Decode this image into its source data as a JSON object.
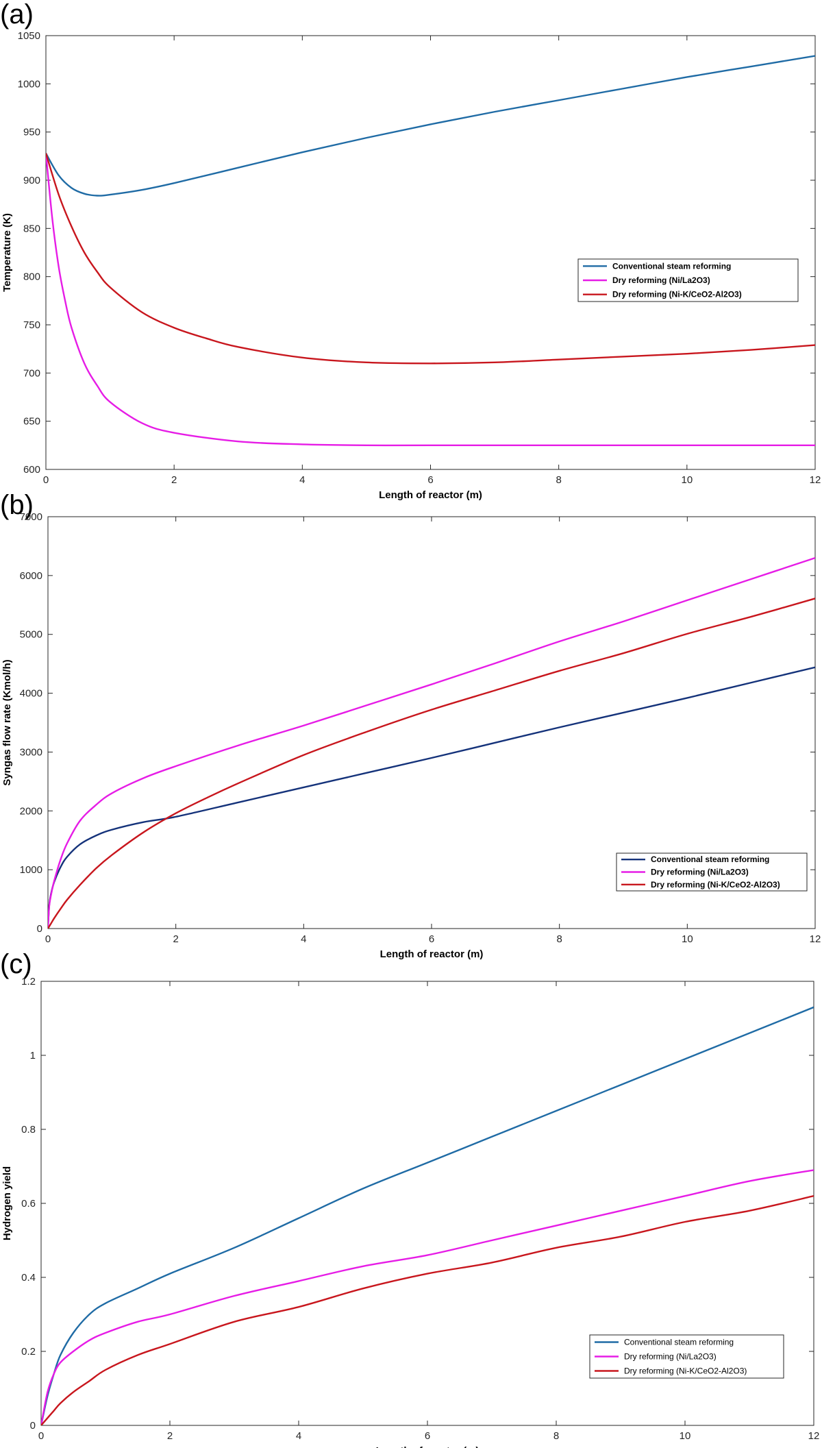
{
  "chart_data": [
    {
      "type": "line",
      "panel_label": "(a)",
      "xlabel": "Length of reactor (m)",
      "ylabel": "Temperature (K)",
      "xlim": [
        0,
        12
      ],
      "ylim": [
        600,
        1050
      ],
      "xticks": [
        0,
        2,
        4,
        6,
        8,
        10,
        12
      ],
      "yticks": [
        600,
        650,
        700,
        750,
        800,
        850,
        900,
        950,
        1000,
        1050
      ],
      "legend_position": "right",
      "grid": false,
      "series": [
        {
          "name": "Conventional steam reforming",
          "color": "#1f6ba5",
          "x": [
            0,
            0.2,
            0.4,
            0.6,
            0.8,
            1.0,
            1.5,
            2,
            3,
            4,
            5,
            6,
            7,
            8,
            9,
            10,
            11,
            12
          ],
          "y": [
            928,
            905,
            892,
            886,
            884,
            885,
            890,
            897,
            913,
            929,
            944,
            958,
            971,
            983,
            995,
            1007,
            1018,
            1029
          ]
        },
        {
          "name": "Dry reforming (Ni/La2O3)",
          "color": "#e61ce6",
          "x": [
            0,
            0.1,
            0.2,
            0.3,
            0.4,
            0.6,
            0.8,
            1.0,
            1.5,
            2,
            3,
            4,
            5,
            6,
            8,
            10,
            12
          ],
          "y": [
            928,
            860,
            810,
            775,
            747,
            710,
            687,
            670,
            648,
            638,
            629,
            626,
            625,
            625,
            625,
            625,
            625
          ]
        },
        {
          "name": "Dry reforming (Ni-K/CeO2-Al2O3)",
          "color": "#c8161d",
          "x": [
            0,
            0.2,
            0.4,
            0.6,
            0.8,
            1.0,
            1.5,
            2,
            2.5,
            3,
            4,
            5,
            6,
            7,
            8,
            9,
            10,
            11,
            12
          ],
          "y": [
            928,
            885,
            852,
            825,
            805,
            789,
            763,
            747,
            736,
            727,
            716,
            711,
            710,
            711,
            714,
            717,
            720,
            724,
            729
          ]
        }
      ]
    },
    {
      "type": "line",
      "panel_label": "(b)",
      "xlabel": "Length of reactor (m)",
      "ylabel": "Syngas flow rate (Kmol/h)",
      "xlim": [
        0,
        12
      ],
      "ylim": [
        0,
        7000
      ],
      "xticks": [
        0,
        2,
        4,
        6,
        8,
        10,
        12
      ],
      "yticks": [
        0,
        1000,
        2000,
        3000,
        4000,
        5000,
        6000,
        7000
      ],
      "legend_position": "bottom-right",
      "grid": false,
      "series": [
        {
          "name": "Conventional steam reforming",
          "color": "#14327a",
          "x": [
            0,
            0.02,
            0.05,
            0.1,
            0.2,
            0.3,
            0.5,
            0.75,
            1.0,
            1.5,
            2,
            3,
            4,
            5,
            6,
            7,
            8,
            9,
            10,
            11,
            12
          ],
          "y": [
            0,
            400,
            600,
            800,
            1050,
            1220,
            1430,
            1580,
            1680,
            1810,
            1900,
            2150,
            2400,
            2650,
            2900,
            3160,
            3420,
            3670,
            3920,
            4180,
            4440
          ]
        },
        {
          "name": "Dry reforming (Ni/La2O3)",
          "color": "#e61ce6",
          "x": [
            0,
            0.02,
            0.05,
            0.1,
            0.2,
            0.3,
            0.5,
            0.75,
            1.0,
            1.5,
            2,
            3,
            4,
            5,
            6,
            7,
            8,
            9,
            10,
            11,
            12
          ],
          "y": [
            0,
            380,
            580,
            820,
            1180,
            1450,
            1830,
            2100,
            2300,
            2560,
            2760,
            3120,
            3450,
            3800,
            4150,
            4510,
            4880,
            5220,
            5580,
            5940,
            6300
          ]
        },
        {
          "name": "Dry reforming (Ni-K/CeO2-Al2O3)",
          "color": "#c8161d",
          "x": [
            0,
            0.05,
            0.1,
            0.2,
            0.3,
            0.5,
            0.75,
            1.0,
            1.5,
            2,
            2.5,
            3,
            4,
            5,
            6,
            7,
            8,
            9,
            10,
            11,
            12
          ],
          "y": [
            0,
            90,
            180,
            340,
            490,
            740,
            1020,
            1250,
            1640,
            1960,
            2230,
            2480,
            2950,
            3350,
            3720,
            4050,
            4380,
            4680,
            5010,
            5300,
            5610
          ]
        }
      ]
    },
    {
      "type": "line",
      "panel_label": "(c)",
      "xlabel": "Length of reactor (m)",
      "ylabel": "Hydrogen yield",
      "xlim": [
        0,
        12
      ],
      "ylim": [
        0,
        1.2
      ],
      "xticks": [
        0,
        2,
        4,
        6,
        8,
        10,
        12
      ],
      "yticks": [
        0,
        0.2,
        0.4,
        0.6,
        0.8,
        1,
        1.2
      ],
      "legend_position": "bottom-right",
      "grid": false,
      "series": [
        {
          "name": "Conventional steam reforming",
          "color": "#1f6ba5",
          "x": [
            0,
            0.1,
            0.2,
            0.3,
            0.5,
            0.75,
            1.0,
            1.5,
            2,
            3,
            4,
            5,
            6,
            7,
            8,
            9,
            10,
            11,
            12
          ],
          "y": [
            0,
            0.08,
            0.14,
            0.19,
            0.25,
            0.3,
            0.33,
            0.37,
            0.41,
            0.48,
            0.56,
            0.64,
            0.71,
            0.78,
            0.85,
            0.92,
            0.99,
            1.06,
            1.13
          ]
        },
        {
          "name": "Dry reforming (Ni/La2O3)",
          "color": "#e61ce6",
          "x": [
            0,
            0.1,
            0.2,
            0.3,
            0.5,
            0.75,
            1.0,
            1.5,
            2,
            3,
            4,
            5,
            6,
            7,
            8,
            9,
            10,
            11,
            12
          ],
          "y": [
            0,
            0.09,
            0.14,
            0.17,
            0.2,
            0.23,
            0.25,
            0.28,
            0.3,
            0.35,
            0.39,
            0.43,
            0.46,
            0.5,
            0.54,
            0.58,
            0.62,
            0.66,
            0.69
          ]
        },
        {
          "name": "Dry reforming (Ni-K/CeO2-Al2O3)",
          "color": "#c8161d",
          "x": [
            0,
            0.1,
            0.2,
            0.3,
            0.5,
            0.75,
            1.0,
            1.5,
            2,
            3,
            4,
            5,
            6,
            7,
            8,
            9,
            10,
            11,
            12
          ],
          "y": [
            0,
            0.02,
            0.04,
            0.06,
            0.09,
            0.12,
            0.15,
            0.19,
            0.22,
            0.28,
            0.32,
            0.37,
            0.41,
            0.44,
            0.48,
            0.51,
            0.55,
            0.58,
            0.62
          ]
        }
      ]
    }
  ]
}
